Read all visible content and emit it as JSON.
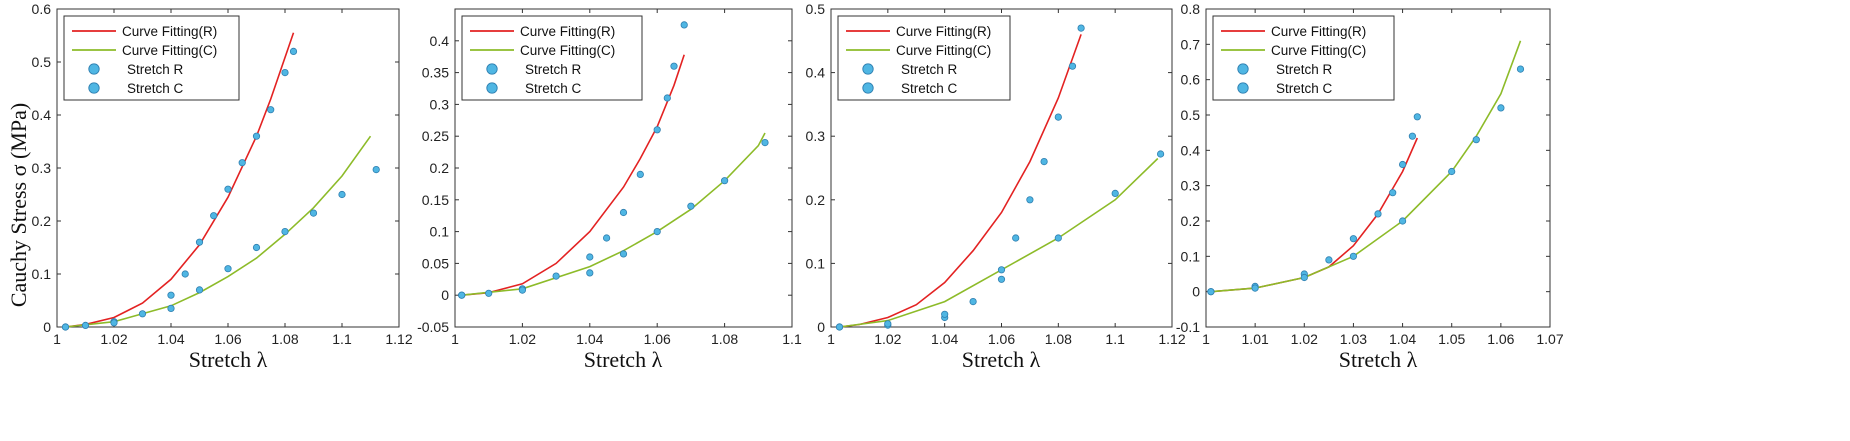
{
  "chart_data": [
    {
      "type": "line",
      "title": "",
      "xlabel": "Stretch λ",
      "ylabel": "Cauchy Stress σ (MPa)",
      "xlim": [
        1,
        1.12
      ],
      "ylim": [
        0,
        0.6
      ],
      "xticks": [
        "1",
        "1.02",
        "1.04",
        "1.06",
        "1.08",
        "1.1",
        "1.12"
      ],
      "yticks": [
        "0",
        "0.1",
        "0.2",
        "0.3",
        "0.4",
        "0.5",
        "0.6"
      ],
      "legend": [
        "Curve Fitting(R)",
        "Curve Fitting(C)",
        "Stretch R",
        "Stretch C"
      ],
      "series": [
        {
          "name": "Curve Fitting(R)",
          "kind": "line",
          "color": "#e32222",
          "x": [
            1.003,
            1.01,
            1.02,
            1.03,
            1.04,
            1.05,
            1.06,
            1.07,
            1.075,
            1.083
          ],
          "y": [
            0,
            0.005,
            0.018,
            0.045,
            0.09,
            0.155,
            0.245,
            0.36,
            0.43,
            0.555
          ]
        },
        {
          "name": "Curve Fitting(C)",
          "kind": "line",
          "color": "#8dbb29",
          "x": [
            1.003,
            1.02,
            1.04,
            1.05,
            1.06,
            1.07,
            1.08,
            1.09,
            1.1,
            1.11
          ],
          "y": [
            0,
            0.01,
            0.04,
            0.065,
            0.095,
            0.13,
            0.175,
            0.225,
            0.285,
            0.36
          ]
        },
        {
          "name": "Stretch R",
          "kind": "markers",
          "color": "#4fb6e3",
          "x": [
            1.003,
            1.01,
            1.02,
            1.03,
            1.04,
            1.045,
            1.05,
            1.055,
            1.06,
            1.065,
            1.07,
            1.075,
            1.08,
            1.083
          ],
          "y": [
            0,
            0.003,
            0.01,
            0.025,
            0.06,
            0.1,
            0.16,
            0.21,
            0.26,
            0.31,
            0.36,
            0.41,
            0.48,
            0.52
          ]
        },
        {
          "name": "Stretch C",
          "kind": "markers",
          "color": "#4fb6e3",
          "x": [
            1.003,
            1.02,
            1.04,
            1.05,
            1.06,
            1.07,
            1.08,
            1.09,
            1.1,
            1.112
          ],
          "y": [
            0,
            0.008,
            0.035,
            0.07,
            0.11,
            0.15,
            0.18,
            0.215,
            0.25,
            0.297
          ]
        }
      ]
    },
    {
      "type": "line",
      "title": "",
      "xlabel": "Stretch λ",
      "ylabel": "",
      "xlim": [
        1,
        1.1
      ],
      "ylim": [
        -0.05,
        0.45
      ],
      "xticks": [
        "1",
        "1.02",
        "1.04",
        "1.06",
        "1.08",
        "1.1"
      ],
      "yticks": [
        "-0.05",
        "0",
        "0.05",
        "0.1",
        "0.15",
        "0.2",
        "0.25",
        "0.3",
        "0.35",
        "0.4"
      ],
      "legend": [
        "Curve Fitting(R)",
        "Curve Fitting(C)",
        "Stretch R",
        "Stretch C"
      ],
      "series": [
        {
          "name": "Curve Fitting(R)",
          "kind": "line",
          "color": "#e32222",
          "x": [
            1.002,
            1.01,
            1.02,
            1.03,
            1.04,
            1.05,
            1.055,
            1.06,
            1.065,
            1.068
          ],
          "y": [
            0,
            0.004,
            0.018,
            0.05,
            0.1,
            0.17,
            0.215,
            0.265,
            0.33,
            0.378
          ]
        },
        {
          "name": "Curve Fitting(C)",
          "kind": "line",
          "color": "#8dbb29",
          "x": [
            1.002,
            1.02,
            1.04,
            1.05,
            1.06,
            1.07,
            1.08,
            1.09,
            1.092
          ],
          "y": [
            0,
            0.01,
            0.045,
            0.07,
            0.1,
            0.135,
            0.18,
            0.235,
            0.255
          ]
        },
        {
          "name": "Stretch R",
          "kind": "markers",
          "color": "#4fb6e3",
          "x": [
            1.002,
            1.01,
            1.02,
            1.03,
            1.04,
            1.045,
            1.05,
            1.055,
            1.06,
            1.063,
            1.065,
            1.068
          ],
          "y": [
            0,
            0.003,
            0.01,
            0.03,
            0.06,
            0.09,
            0.13,
            0.19,
            0.26,
            0.31,
            0.36,
            0.425
          ]
        },
        {
          "name": "Stretch C",
          "kind": "markers",
          "color": "#4fb6e3",
          "x": [
            1.002,
            1.02,
            1.04,
            1.05,
            1.06,
            1.07,
            1.08,
            1.092
          ],
          "y": [
            0,
            0.008,
            0.035,
            0.065,
            0.1,
            0.14,
            0.18,
            0.24
          ]
        }
      ]
    },
    {
      "type": "line",
      "title": "",
      "xlabel": "Stretch λ",
      "ylabel": "",
      "xlim": [
        1,
        1.12
      ],
      "ylim": [
        0,
        0.5
      ],
      "xticks": [
        "1",
        "1.02",
        "1.04",
        "1.06",
        "1.08",
        "1.1",
        "1.12"
      ],
      "yticks": [
        "0",
        "0.1",
        "0.2",
        "0.3",
        "0.4",
        "0.5"
      ],
      "legend": [
        "Curve Fitting(R)",
        "Curve Fitting(C)",
        "Stretch R",
        "Stretch C"
      ],
      "series": [
        {
          "name": "Curve Fitting(R)",
          "kind": "line",
          "color": "#e32222",
          "x": [
            1.003,
            1.01,
            1.02,
            1.03,
            1.04,
            1.05,
            1.06,
            1.07,
            1.08,
            1.088
          ],
          "y": [
            0,
            0.004,
            0.015,
            0.035,
            0.07,
            0.12,
            0.18,
            0.26,
            0.36,
            0.46
          ]
        },
        {
          "name": "Curve Fitting(C)",
          "kind": "line",
          "color": "#8dbb29",
          "x": [
            1.003,
            1.02,
            1.04,
            1.06,
            1.08,
            1.1,
            1.115
          ],
          "y": [
            0,
            0.01,
            0.04,
            0.09,
            0.14,
            0.2,
            0.265
          ]
        },
        {
          "name": "Stretch R",
          "kind": "markers",
          "color": "#4fb6e3",
          "x": [
            1.003,
            1.02,
            1.04,
            1.05,
            1.06,
            1.065,
            1.07,
            1.075,
            1.08,
            1.085,
            1.088
          ],
          "y": [
            0,
            0.003,
            0.015,
            0.04,
            0.09,
            0.14,
            0.2,
            0.26,
            0.33,
            0.41,
            0.47
          ]
        },
        {
          "name": "Stretch C",
          "kind": "markers",
          "color": "#4fb6e3",
          "x": [
            1.003,
            1.02,
            1.04,
            1.06,
            1.08,
            1.1,
            1.116
          ],
          "y": [
            0,
            0.005,
            0.02,
            0.075,
            0.14,
            0.21,
            0.272
          ]
        }
      ]
    },
    {
      "type": "line",
      "title": "",
      "xlabel": "Stretch λ",
      "ylabel": "",
      "xlim": [
        1,
        1.07
      ],
      "ylim": [
        -0.1,
        0.8
      ],
      "xticks": [
        "1",
        "1.01",
        "1.02",
        "1.03",
        "1.04",
        "1.05",
        "1.06",
        "1.07"
      ],
      "yticks": [
        "-0.1",
        "0",
        "0.1",
        "0.2",
        "0.3",
        "0.4",
        "0.5",
        "0.6",
        "0.7",
        "0.8"
      ],
      "legend": [
        "Curve Fitting(R)",
        "Curve Fitting(C)",
        "Stretch R",
        "Stretch C"
      ],
      "series": [
        {
          "name": "Curve Fitting(R)",
          "kind": "line",
          "color": "#e32222",
          "x": [
            1.001,
            1.01,
            1.02,
            1.025,
            1.03,
            1.035,
            1.04,
            1.043
          ],
          "y": [
            0,
            0.01,
            0.04,
            0.07,
            0.13,
            0.22,
            0.34,
            0.435
          ]
        },
        {
          "name": "Curve Fitting(C)",
          "kind": "line",
          "color": "#8dbb29",
          "x": [
            1.001,
            1.01,
            1.02,
            1.03,
            1.04,
            1.05,
            1.055,
            1.06,
            1.064
          ],
          "y": [
            0,
            0.01,
            0.04,
            0.1,
            0.2,
            0.34,
            0.44,
            0.56,
            0.71
          ]
        },
        {
          "name": "Stretch R",
          "kind": "markers",
          "color": "#4fb6e3",
          "x": [
            1.001,
            1.01,
            1.02,
            1.025,
            1.03,
            1.035,
            1.038,
            1.04,
            1.042,
            1.043
          ],
          "y": [
            0,
            0.015,
            0.05,
            0.09,
            0.15,
            0.22,
            0.28,
            0.36,
            0.44,
            0.495
          ]
        },
        {
          "name": "Stretch C",
          "kind": "markers",
          "color": "#4fb6e3",
          "x": [
            1.001,
            1.01,
            1.02,
            1.03,
            1.04,
            1.05,
            1.055,
            1.06,
            1.064
          ],
          "y": [
            0,
            0.01,
            0.04,
            0.1,
            0.2,
            0.34,
            0.43,
            0.52,
            0.63
          ]
        }
      ]
    }
  ]
}
